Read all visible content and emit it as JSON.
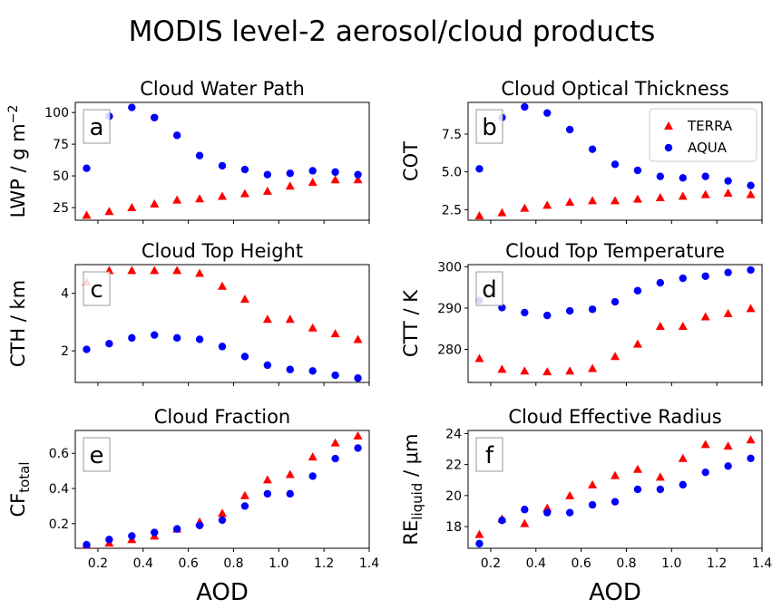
{
  "figure": {
    "title": "MODIS level-2 aerosol/cloud products",
    "xlabel": "AOD"
  },
  "colors": {
    "terra": "#ff0000",
    "aqua": "#0000ff"
  },
  "legend": {
    "placement": "top-right",
    "entries": [
      "TERRA",
      "AQUA"
    ]
  },
  "chart_data": [
    {
      "type": "scatter",
      "panel": "a",
      "title": "Cloud Water Path",
      "ylabel": "LWP / g m^-2",
      "ylim": [
        15,
        108
      ],
      "yticks": [
        25,
        50,
        75,
        100
      ],
      "xlim": [
        0.1,
        1.4
      ],
      "xticks": [],
      "x": [
        0.15,
        0.25,
        0.35,
        0.45,
        0.55,
        0.65,
        0.75,
        0.85,
        0.95,
        1.05,
        1.15,
        1.25,
        1.35
      ],
      "series": [
        {
          "name": "TERRA",
          "marker": "triangle",
          "values": [
            19,
            22,
            25,
            28,
            31,
            32,
            34,
            36,
            38,
            42,
            45,
            47,
            47
          ]
        },
        {
          "name": "AQUA",
          "marker": "circle",
          "values": [
            56,
            97,
            104,
            96,
            82,
            66,
            58,
            55,
            51,
            52,
            54,
            53,
            51
          ]
        }
      ]
    },
    {
      "type": "scatter",
      "panel": "b",
      "title": "Cloud Optical Thickness",
      "ylabel": "COT",
      "ylim": [
        1.8,
        9.6
      ],
      "yticks": [
        2.5,
        5.0,
        7.5
      ],
      "xlim": [
        0.1,
        1.4
      ],
      "xticks": [],
      "legend": true,
      "x": [
        0.15,
        0.25,
        0.35,
        0.45,
        0.55,
        0.65,
        0.75,
        0.85,
        0.95,
        1.05,
        1.15,
        1.25,
        1.35
      ],
      "series": [
        {
          "name": "TERRA",
          "marker": "triangle",
          "values": [
            2.1,
            2.3,
            2.6,
            2.8,
            3.0,
            3.1,
            3.1,
            3.2,
            3.3,
            3.4,
            3.5,
            3.6,
            3.5
          ]
        },
        {
          "name": "AQUA",
          "marker": "circle",
          "values": [
            5.2,
            8.6,
            9.3,
            8.9,
            7.8,
            6.5,
            5.5,
            5.1,
            4.7,
            4.6,
            4.7,
            4.4,
            4.1
          ]
        }
      ]
    },
    {
      "type": "scatter",
      "panel": "c",
      "title": "Cloud Top Height",
      "ylabel": "CTH / km",
      "ylim": [
        0.9,
        5.0
      ],
      "yticks": [
        2,
        4
      ],
      "xlim": [
        0.1,
        1.4
      ],
      "xticks": [],
      "x": [
        0.15,
        0.25,
        0.35,
        0.45,
        0.55,
        0.65,
        0.75,
        0.85,
        0.95,
        1.05,
        1.15,
        1.25,
        1.35
      ],
      "series": [
        {
          "name": "TERRA",
          "marker": "triangle",
          "values": [
            4.4,
            4.8,
            4.8,
            4.8,
            4.8,
            4.7,
            4.25,
            3.8,
            3.1,
            3.1,
            2.8,
            2.6,
            2.4
          ]
        },
        {
          "name": "AQUA",
          "marker": "circle",
          "values": [
            2.05,
            2.25,
            2.45,
            2.55,
            2.45,
            2.4,
            2.15,
            1.8,
            1.5,
            1.35,
            1.3,
            1.15,
            1.05
          ]
        }
      ]
    },
    {
      "type": "scatter",
      "panel": "d",
      "title": "Cloud Top Temperature",
      "ylabel": "CTT / K",
      "ylim": [
        272,
        300.5
      ],
      "yticks": [
        280,
        290,
        300
      ],
      "xlim": [
        0.1,
        1.4
      ],
      "xticks": [],
      "x": [
        0.15,
        0.25,
        0.35,
        0.45,
        0.55,
        0.65,
        0.75,
        0.85,
        0.95,
        1.05,
        1.15,
        1.25,
        1.35
      ],
      "series": [
        {
          "name": "TERRA",
          "marker": "triangle",
          "values": [
            277.8,
            275.2,
            274.8,
            274.6,
            274.8,
            275.4,
            278.3,
            281.3,
            285.6,
            285.6,
            287.9,
            288.7,
            289.9
          ]
        },
        {
          "name": "AQUA",
          "marker": "circle",
          "values": [
            291.8,
            290.1,
            288.9,
            288.2,
            289.3,
            289.7,
            291.5,
            294.2,
            296.1,
            297.2,
            297.7,
            298.6,
            299.2
          ]
        }
      ]
    },
    {
      "type": "scatter",
      "panel": "e",
      "title": "Cloud Fraction",
      "ylabel": "CF_total",
      "ylabel_main": "CF",
      "ylabel_sub": "total",
      "ylim": [
        0.06,
        0.73
      ],
      "yticks": [
        0.2,
        0.4,
        0.6
      ],
      "xlim": [
        0.1,
        1.4
      ],
      "xticks": [
        0.2,
        0.4,
        0.6,
        0.8,
        1.0,
        1.2,
        1.4
      ],
      "x": [
        0.15,
        0.25,
        0.35,
        0.45,
        0.55,
        0.65,
        0.75,
        0.85,
        0.95,
        1.05,
        1.15,
        1.25,
        1.35
      ],
      "series": [
        {
          "name": "TERRA",
          "marker": "triangle",
          "values": [
            0.08,
            0.09,
            0.11,
            0.13,
            0.17,
            0.21,
            0.26,
            0.36,
            0.45,
            0.48,
            0.58,
            0.66,
            0.7
          ]
        },
        {
          "name": "AQUA",
          "marker": "circle",
          "values": [
            0.08,
            0.11,
            0.13,
            0.15,
            0.17,
            0.19,
            0.22,
            0.3,
            0.37,
            0.37,
            0.47,
            0.57,
            0.63
          ]
        }
      ]
    },
    {
      "type": "scatter",
      "panel": "f",
      "title": "Cloud Effective Radius",
      "ylabel": "RE_liquid / μm",
      "ylabel_main": "RE",
      "ylabel_sub": "liquid",
      "ylabel_tail": " / μm",
      "ylim": [
        16.6,
        24.2
      ],
      "yticks": [
        18,
        20,
        22,
        24
      ],
      "xlim": [
        0.1,
        1.4
      ],
      "xticks": [
        0.2,
        0.4,
        0.6,
        0.8,
        1.0,
        1.2,
        1.4
      ],
      "x": [
        0.15,
        0.25,
        0.35,
        0.45,
        0.55,
        0.65,
        0.75,
        0.85,
        0.95,
        1.05,
        1.15,
        1.25,
        1.35
      ],
      "series": [
        {
          "name": "TERRA",
          "marker": "triangle",
          "values": [
            17.5,
            18.5,
            18.2,
            19.2,
            20.0,
            20.7,
            21.3,
            21.7,
            21.2,
            22.4,
            23.3,
            23.2,
            23.6
          ]
        },
        {
          "name": "AQUA",
          "marker": "circle",
          "values": [
            16.9,
            18.4,
            19.1,
            18.9,
            18.9,
            19.4,
            19.6,
            20.4,
            20.4,
            20.7,
            21.5,
            21.9,
            22.4
          ]
        }
      ]
    }
  ]
}
